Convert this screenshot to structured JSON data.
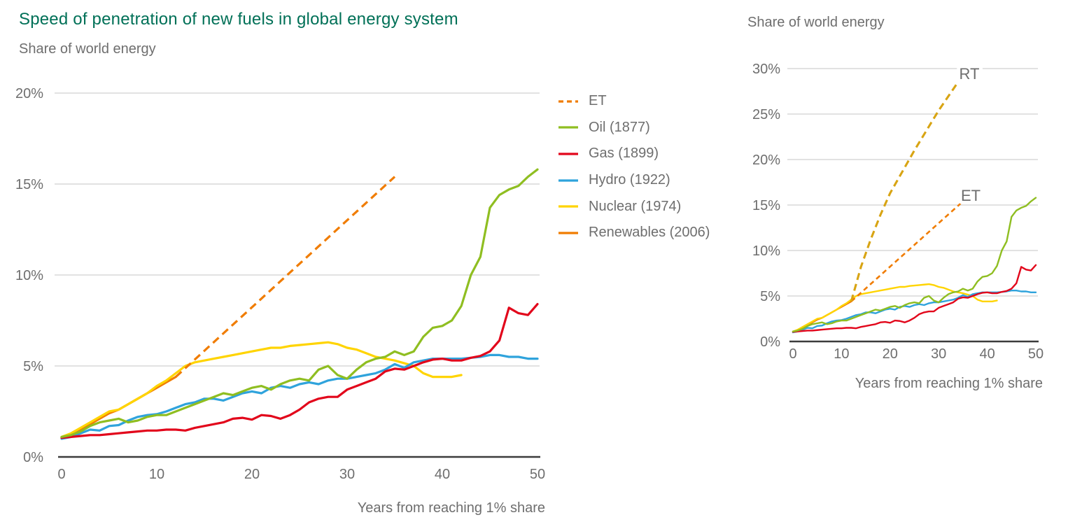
{
  "title": "Speed of penetration of new fuels in global energy system",
  "legend": {
    "items": [
      {
        "label": "ET",
        "color": "#F07C00",
        "dashed": true
      },
      {
        "label": "Oil (1877)",
        "color": "#8FBE21",
        "dashed": false
      },
      {
        "label": "Gas (1899)",
        "color": "#E2061B",
        "dashed": false
      },
      {
        "label": "Hydro (1922)",
        "color": "#2FA3DC",
        "dashed": false
      },
      {
        "label": "Nuclear (1974)",
        "color": "#FFD400",
        "dashed": false
      },
      {
        "label": "Renewables (2006)",
        "color": "#F07C00",
        "dashed": false
      }
    ]
  },
  "colors": {
    "title": "#007057",
    "text_gray": "#6e6e6e",
    "grid": "#d8d8d8",
    "axis": "#3c3c3c",
    "oil": "#8FBE21",
    "gas": "#E2061B",
    "hydro": "#2FA3DC",
    "nuclear": "#FFD400",
    "renewables": "#F07C00",
    "et": "#F07C00",
    "rt": "#D8A413"
  },
  "chart_data": {
    "type": "line",
    "x_step": 1,
    "fuel_series": [
      {
        "name": "Oil (1877)",
        "color": "#8FBE21",
        "x_start": 0,
        "y": [
          1.1,
          1.2,
          1.4,
          1.7,
          1.9,
          2.0,
          2.1,
          1.9,
          2.0,
          2.2,
          2.3,
          2.3,
          2.5,
          2.7,
          2.9,
          3.1,
          3.3,
          3.5,
          3.4,
          3.6,
          3.8,
          3.9,
          3.7,
          4.0,
          4.2,
          4.3,
          4.2,
          4.8,
          5.0,
          4.5,
          4.3,
          4.8,
          5.2,
          5.4,
          5.5,
          5.8,
          5.6,
          5.8,
          6.6,
          7.1,
          7.2,
          7.5,
          8.3,
          10.0,
          11.0,
          13.7,
          14.4,
          14.7,
          14.9,
          15.4,
          15.8
        ]
      },
      {
        "name": "Gas (1899)",
        "color": "#E2061B",
        "x_start": 0,
        "y": [
          1.05,
          1.1,
          1.15,
          1.2,
          1.2,
          1.25,
          1.3,
          1.35,
          1.4,
          1.45,
          1.45,
          1.5,
          1.5,
          1.45,
          1.6,
          1.7,
          1.8,
          1.9,
          2.1,
          2.15,
          2.05,
          2.3,
          2.25,
          2.1,
          2.3,
          2.6,
          3.0,
          3.2,
          3.3,
          3.3,
          3.7,
          3.9,
          4.1,
          4.3,
          4.7,
          4.85,
          4.8,
          5.0,
          5.2,
          5.35,
          5.4,
          5.3,
          5.3,
          5.45,
          5.55,
          5.8,
          6.4,
          8.2,
          7.9,
          7.8,
          8.4
        ]
      },
      {
        "name": "Hydro (1922)",
        "color": "#2FA3DC",
        "x_start": 0,
        "y": [
          1.0,
          1.1,
          1.3,
          1.5,
          1.45,
          1.7,
          1.75,
          2.0,
          2.2,
          2.3,
          2.35,
          2.5,
          2.7,
          2.9,
          3.0,
          3.2,
          3.2,
          3.1,
          3.3,
          3.5,
          3.6,
          3.5,
          3.8,
          3.9,
          3.8,
          4.0,
          4.1,
          4.0,
          4.2,
          4.3,
          4.3,
          4.4,
          4.5,
          4.6,
          4.8,
          5.1,
          4.9,
          5.2,
          5.3,
          5.4,
          5.4,
          5.4,
          5.4,
          5.45,
          5.5,
          5.6,
          5.6,
          5.5,
          5.5,
          5.4,
          5.4
        ]
      },
      {
        "name": "Nuclear (1974)",
        "color": "#FFD400",
        "x_start": 0,
        "y": [
          1.1,
          1.3,
          1.6,
          1.9,
          2.2,
          2.5,
          2.6,
          2.9,
          3.2,
          3.5,
          3.9,
          4.2,
          4.6,
          5.0,
          5.2,
          5.3,
          5.4,
          5.5,
          5.6,
          5.7,
          5.8,
          5.9,
          6.0,
          6.0,
          6.1,
          6.15,
          6.2,
          6.25,
          6.3,
          6.2,
          6.0,
          5.9,
          5.7,
          5.5,
          5.4,
          5.3,
          5.15,
          5.0,
          4.6,
          4.4,
          4.4,
          4.4,
          4.5
        ]
      },
      {
        "name": "Renewables (2006)",
        "color": "#F07C00",
        "x_start": 0,
        "y": [
          1.05,
          1.2,
          1.5,
          1.8,
          2.1,
          2.4,
          2.6,
          2.9,
          3.2,
          3.5,
          3.8,
          4.1,
          4.4
        ]
      }
    ],
    "projection_series": [
      {
        "name": "ET",
        "color": "#F07C00",
        "dashed": true,
        "points": [
          [
            12,
            4.4
          ],
          [
            35,
            15.4
          ]
        ]
      },
      {
        "name": "RT",
        "color": "#D8A413",
        "dashed": true,
        "points": [
          [
            12,
            4.4
          ],
          [
            14,
            8.2
          ],
          [
            16,
            11.2
          ],
          [
            18,
            13.9
          ],
          [
            20,
            16.3
          ],
          [
            25,
            21.0
          ],
          [
            30,
            25.4
          ],
          [
            35,
            29.3
          ]
        ]
      }
    ],
    "charts": [
      {
        "name": "left",
        "title": "Share of world energy",
        "xlabel": "Years from reaching 1% share",
        "xlim": [
          0,
          50
        ],
        "ylim": [
          0,
          20
        ],
        "xticks": [
          0,
          10,
          20,
          30,
          40,
          50
        ],
        "yticks": [
          0,
          5,
          10,
          15,
          20
        ],
        "ytick_suffix": "%",
        "grid": true,
        "projections": [
          "ET"
        ],
        "annotations": []
      },
      {
        "name": "right",
        "title": "Share of world energy",
        "xlabel": "Years from reaching 1% share",
        "xlim": [
          0,
          50
        ],
        "ylim": [
          0,
          30
        ],
        "xticks": [
          0,
          10,
          20,
          30,
          40,
          50
        ],
        "yticks": [
          0,
          5,
          10,
          15,
          20,
          25,
          30
        ],
        "ytick_suffix": "%",
        "grid": true,
        "projections": [
          "ET",
          "RT"
        ],
        "annotations": [
          {
            "text": "RT",
            "x": 36.3,
            "y": 29.4
          },
          {
            "text": "ET",
            "x": 36.6,
            "y": 16.0
          }
        ]
      }
    ]
  }
}
